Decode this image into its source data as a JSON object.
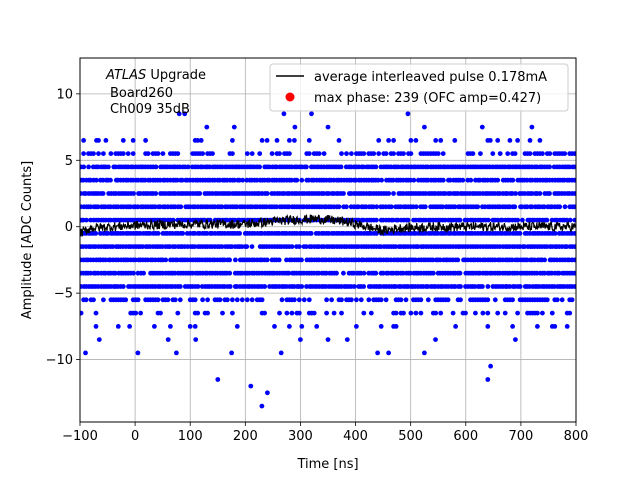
{
  "chart_data": {
    "type": "scatter",
    "xlabel": "Time [ns]",
    "ylabel": "Amplitude [ADC Counts]",
    "xlim": [
      -100,
      800
    ],
    "ylim": [
      -14.7,
      12.7
    ],
    "x_ticks": [
      -100,
      0,
      100,
      200,
      300,
      400,
      500,
      600,
      700,
      800
    ],
    "y_ticks": [
      -10,
      -5,
      0,
      5,
      10
    ],
    "grid": true,
    "legend_position": "top-right",
    "annotation": {
      "line1_italic": "ATLAS",
      "line1_rest": " Upgrade",
      "line2": "Board260",
      "line3": "Ch009 35dB"
    },
    "series": [
      {
        "name": "average interleaved pulse 0.178mA",
        "kind": "line",
        "color": "#000000",
        "x_range": [
          -100,
          800
        ],
        "profile": [
          [
            -100,
            -0.5
          ],
          [
            -80,
            -0.1
          ],
          [
            0,
            0.1
          ],
          [
            100,
            0.2
          ],
          [
            200,
            0.2
          ],
          [
            280,
            0.5
          ],
          [
            330,
            0.6
          ],
          [
            380,
            0.4
          ],
          [
            420,
            0.0
          ],
          [
            450,
            -0.3
          ],
          [
            480,
            -0.1
          ],
          [
            550,
            0.0
          ],
          [
            650,
            0.0
          ],
          [
            800,
            0.0
          ]
        ],
        "noise_amplitude": 0.35
      },
      {
        "name": "max phase: 239 (OFC amp=0.427)",
        "kind": "scatter",
        "color": "#0000ff",
        "legend_marker_color": "#ff0000",
        "dense_levels": [
          -4.5,
          -3.5,
          -2.5,
          -1.5,
          -0.5,
          0.5,
          1.5,
          2.5,
          3.5,
          4.5
        ],
        "sparse_levels": [
          {
            "y": 5.5,
            "density": 0.55
          },
          {
            "y": -5.5,
            "density": 0.55
          },
          {
            "y": 6.5,
            "density": 0.12
          },
          {
            "y": -6.5,
            "density": 0.3
          },
          {
            "y": -7.5,
            "density": 0.1
          }
        ],
        "outliers": [
          [
            -90,
            -9.5
          ],
          [
            -65,
            -8.5
          ],
          [
            -10,
            -7.5
          ],
          [
            5,
            -9.5
          ],
          [
            35,
            -7.5
          ],
          [
            60,
            -8.5
          ],
          [
            75,
            -9.5
          ],
          [
            110,
            -8.5
          ],
          [
            150,
            -11.5
          ],
          [
            175,
            -9.5
          ],
          [
            210,
            -12.0
          ],
          [
            230,
            -13.5
          ],
          [
            240,
            -12.5
          ],
          [
            265,
            -9.5
          ],
          [
            300,
            -8.5
          ],
          [
            350,
            -8.5
          ],
          [
            385,
            -8.5
          ],
          [
            440,
            -9.5
          ],
          [
            460,
            -9.5
          ],
          [
            525,
            -9.5
          ],
          [
            545,
            -8.5
          ],
          [
            640,
            -11.5
          ],
          [
            645,
            -10.5
          ],
          [
            690,
            -8.5
          ],
          [
            -70,
            6.5
          ],
          [
            80,
            8.5
          ],
          [
            90,
            8.5
          ],
          [
            120,
            6.5
          ],
          [
            130,
            7.5
          ],
          [
            180,
            7.5
          ],
          [
            270,
            8.5
          ],
          [
            290,
            7.5
          ],
          [
            320,
            8.5
          ],
          [
            350,
            7.5
          ],
          [
            495,
            8.5
          ],
          [
            525,
            7.5
          ],
          [
            580,
            6.5
          ],
          [
            630,
            7.5
          ],
          [
            680,
            6.5
          ],
          [
            720,
            7.5
          ]
        ]
      }
    ]
  }
}
